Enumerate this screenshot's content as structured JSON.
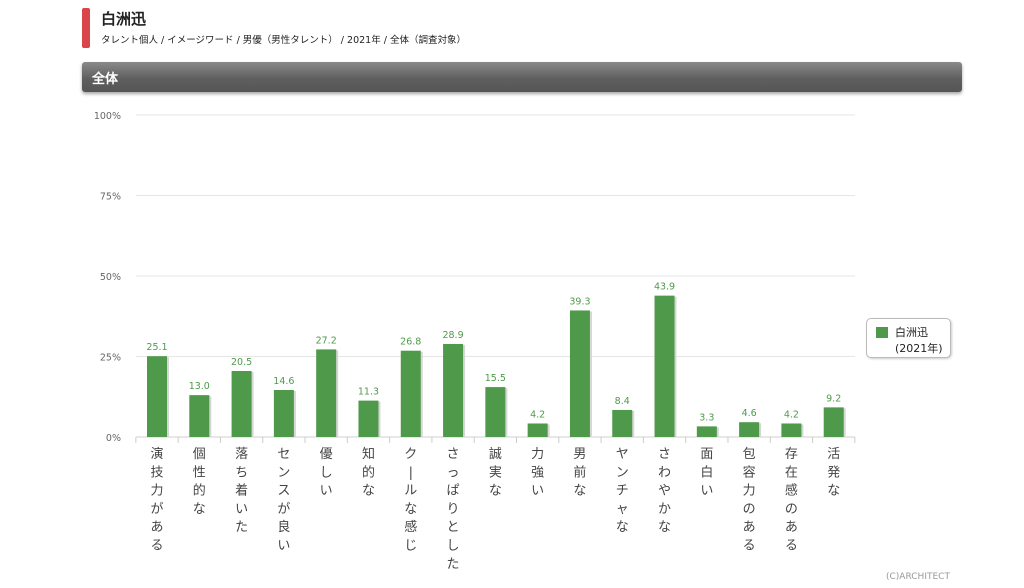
{
  "header": {
    "title": "白洲迅",
    "subtitle": "タレント個人 / イメージワード / 男優（男性タレント） / 2021年 / 全体（調査対象）"
  },
  "section": {
    "title": "全体"
  },
  "legend": {
    "name": "白洲迅",
    "year": "(2021年)"
  },
  "copyright": "(C)ARCHITECT",
  "colors": {
    "bar": "#4f9a4a",
    "accent": "#d9454b"
  },
  "chart_data": {
    "type": "bar",
    "categories": [
      "演技力がある",
      "個性的な",
      "落ち着いた",
      "センスが良い",
      "優しい",
      "知的な",
      "クールな感じ",
      "さっぱりとした",
      "誠実な",
      "力強い",
      "男前な",
      "ヤンチャな",
      "さわやかな",
      "面白い",
      "包容力のある",
      "存在感のある",
      "活発な"
    ],
    "series": [
      {
        "name": "白洲迅 (2021年)",
        "values": [
          25.1,
          13.0,
          20.5,
          14.6,
          27.2,
          11.3,
          26.8,
          28.9,
          15.5,
          4.2,
          39.3,
          8.4,
          43.9,
          3.3,
          4.6,
          4.2,
          9.2
        ]
      }
    ],
    "value_labels": [
      "25.1",
      "13.0",
      "20.5",
      "14.6",
      "27.2",
      "11.3",
      "26.8",
      "28.9",
      "15.5",
      "4.2",
      "39.3",
      "8.4",
      "43.9",
      "3.3",
      "4.6",
      "4.2",
      "9.2"
    ],
    "y_ticks": [
      "0%",
      "25%",
      "50%",
      "75%",
      "100%"
    ],
    "ylim": [
      0,
      100
    ],
    "grid": true,
    "legend_position": "right"
  }
}
